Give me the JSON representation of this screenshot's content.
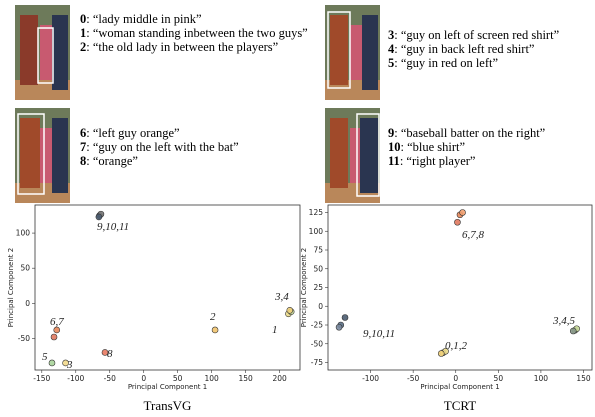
{
  "panels": [
    {
      "lines": [
        {
          "index": "0",
          "text": ": “lady middle in pink”"
        },
        {
          "index": "1",
          "text": ": “woman standing inbetween the two guys”"
        },
        {
          "index": "2",
          "text": ": “the old lady in between the players”"
        }
      ]
    },
    {
      "lines": [
        {
          "index": "3",
          "text": ": “guy on left of screen red shirt”"
        },
        {
          "index": "4",
          "text": ": “guy in back left red shirt”"
        },
        {
          "index": "5",
          "text": ": “guy in red on left”"
        }
      ]
    },
    {
      "lines": [
        {
          "index": "6",
          "text": ": “left guy orange”"
        },
        {
          "index": "7",
          "text": ": “guy on the left with the bat”"
        },
        {
          "index": "8",
          "text": ": “orange”"
        }
      ]
    },
    {
      "lines": [
        {
          "index": "9",
          "text": ": “baseball batter on the right”"
        },
        {
          "index": "10",
          "text": ": “blue shirt”"
        },
        {
          "index": "11",
          "text": ": “right player”"
        }
      ]
    }
  ],
  "chart_data": [
    {
      "type": "scatter",
      "title": "TransVG",
      "x_label": "Principal Component 1",
      "y_label": "Principal Component 2",
      "x": [
        -65,
        -63,
        -66,
        213,
        217,
        215,
        105,
        -128,
        -132,
        -57,
        -135,
        -115
      ],
      "y": [
        125,
        127,
        123,
        -15,
        -12,
        -10,
        -38,
        -38,
        -48,
        -70,
        -85,
        -85
      ],
      "colors": [
        "#5a6f86",
        "#7a7a7a",
        "#4b5c70",
        "#e9d98a",
        "#c9dc9a",
        "#f0d07a",
        "#f2c46e",
        "#e8875a",
        "#e0785e",
        "#e87a62",
        "#a9d49a",
        "#f2d98c"
      ],
      "xlim": [
        -160,
        230
      ],
      "xticks": [
        -150,
        -100,
        -50,
        0,
        50,
        100,
        150,
        200
      ],
      "ylim": [
        -95,
        140
      ],
      "yticks": [
        -50,
        0,
        50,
        100
      ],
      "annotations": [
        "9,10,11",
        "3,4",
        "1",
        "2",
        "6,7",
        "8",
        "5",
        "3"
      ]
    },
    {
      "type": "scatter",
      "title": "TCRT",
      "x_label": "Principal Component 1",
      "y_label": "Principal Component 2",
      "x": [
        5,
        8,
        2,
        -135,
        -130,
        -137,
        -15,
        -12,
        -17,
        140,
        142,
        138
      ],
      "y": [
        122,
        125,
        112,
        -25,
        -15,
        -28,
        -62,
        -60,
        -63,
        -32,
        -30,
        -33
      ],
      "colors": [
        "#e8875a",
        "#f2a070",
        "#e0785e",
        "#5a6f86",
        "#4b5c70",
        "#7a8aa0",
        "#f2d98c",
        "#e9d98a",
        "#f0d07a",
        "#a9b4a0",
        "#c9dc9a",
        "#8a9a8a"
      ],
      "xlim": [
        -150,
        160
      ],
      "xticks": [
        -100,
        -50,
        0,
        50,
        100,
        150
      ],
      "ylim": [
        -85,
        135
      ],
      "yticks": [
        -75,
        -50,
        -25,
        0,
        25,
        50,
        75,
        100,
        125
      ],
      "annotations": [
        "6,7,8",
        "9,10,11",
        "0,1,2",
        "3,4,5"
      ]
    }
  ]
}
